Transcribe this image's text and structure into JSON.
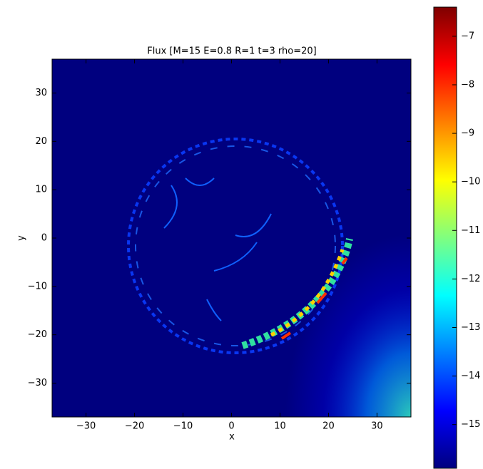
{
  "chart_data": {
    "type": "heatmap",
    "title": "Flux [M=15 E=0.8 R=1 t=3 rho=20]",
    "x_label": "x",
    "y_label": "y",
    "xlim": [
      -37,
      37
    ],
    "ylim": [
      -37,
      37
    ],
    "xticks": [
      {
        "value": -30,
        "label": "−30"
      },
      {
        "value": -20,
        "label": "−20"
      },
      {
        "value": -10,
        "label": "−10"
      },
      0,
      10,
      20,
      30
    ],
    "yticks": [
      {
        "value": -30,
        "label": "−30"
      },
      {
        "value": -20,
        "label": "−20"
      },
      {
        "value": -10,
        "label": "−10"
      },
      0,
      10,
      20,
      30
    ],
    "clim": [
      -15.9,
      -6.4
    ],
    "cticks": [
      {
        "value": -15,
        "label": "−15"
      },
      {
        "value": -14,
        "label": "−14"
      },
      {
        "value": -13,
        "label": "−13"
      },
      {
        "value": -12,
        "label": "−12"
      },
      {
        "value": -11,
        "label": "−11"
      },
      {
        "value": -10,
        "label": "−10"
      },
      {
        "value": -9,
        "label": "−9"
      },
      {
        "value": -8,
        "label": "−8"
      },
      {
        "value": -7,
        "label": "−7"
      }
    ],
    "colormap": [
      "#00007f",
      "#0000ff",
      "#00ffff",
      "#ffff00",
      "#ff0000",
      "#7f0000"
    ]
  }
}
